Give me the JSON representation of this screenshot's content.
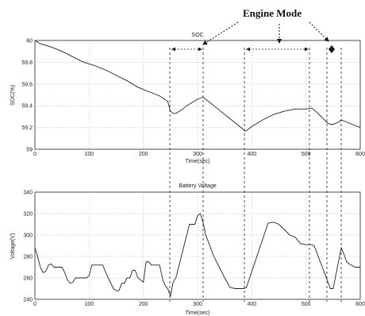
{
  "annotation": "Engine Mode",
  "chart_data": [
    {
      "type": "line",
      "title": "SOC",
      "xlabel": "Time(sec)",
      "ylabel": "SOC(%)",
      "xlim": [
        0,
        600
      ],
      "ylim": [
        59,
        60
      ],
      "xticks": [
        "0",
        "100",
        "200",
        "300",
        "400",
        "500",
        "600"
      ],
      "yticks": [
        "59",
        "59.2",
        "59.4",
        "59.6",
        "59.8",
        "60"
      ],
      "grid": true,
      "x": [
        0,
        10,
        30,
        50,
        70,
        90,
        110,
        130,
        150,
        170,
        190,
        210,
        230,
        245,
        250,
        255,
        260,
        270,
        280,
        290,
        300,
        310,
        320,
        330,
        340,
        350,
        360,
        370,
        380,
        387,
        390,
        400,
        420,
        440,
        460,
        480,
        500,
        510,
        520,
        530,
        540,
        545,
        550,
        560,
        565,
        570,
        580,
        590,
        600
      ],
      "values": [
        60.0,
        59.97,
        59.94,
        59.9,
        59.85,
        59.8,
        59.77,
        59.73,
        59.68,
        59.63,
        59.57,
        59.53,
        59.49,
        59.44,
        59.35,
        59.33,
        59.33,
        59.36,
        59.4,
        59.43,
        59.46,
        59.48,
        59.44,
        59.4,
        59.36,
        59.32,
        59.28,
        59.24,
        59.2,
        59.17,
        59.17,
        59.21,
        59.27,
        59.32,
        59.35,
        59.37,
        59.37,
        59.38,
        59.34,
        59.29,
        59.24,
        59.23,
        59.23,
        59.25,
        59.27,
        59.26,
        59.24,
        59.22,
        59.2
      ]
    },
    {
      "type": "line",
      "title": "Battery Voltage",
      "xlabel": "Time(sec)",
      "ylabel": "Voltage(V)",
      "xlim": [
        0,
        600
      ],
      "ylim": [
        240,
        340
      ],
      "xticks": [
        "0",
        "100",
        "200",
        "300",
        "400",
        "500",
        "600"
      ],
      "yticks": [
        "240",
        "260",
        "280",
        "300",
        "320",
        "340"
      ],
      "grid": true,
      "x": [
        0,
        5,
        10,
        15,
        20,
        25,
        30,
        35,
        40,
        45,
        50,
        55,
        60,
        65,
        70,
        75,
        80,
        85,
        90,
        95,
        100,
        105,
        110,
        115,
        120,
        125,
        130,
        135,
        140,
        145,
        150,
        155,
        160,
        165,
        170,
        175,
        180,
        185,
        190,
        195,
        200,
        205,
        210,
        215,
        220,
        225,
        230,
        235,
        240,
        245,
        250,
        255,
        260,
        265,
        270,
        275,
        280,
        285,
        290,
        295,
        300,
        305,
        310,
        315,
        330,
        350,
        360,
        370,
        380,
        385,
        390,
        430,
        440,
        450,
        460,
        470,
        480,
        490,
        500,
        510,
        515,
        530,
        545,
        550,
        565,
        570,
        575,
        580,
        590,
        600
      ],
      "values": [
        288,
        280,
        270,
        265,
        266,
        272,
        273,
        270,
        270,
        270,
        270,
        265,
        258,
        255,
        256,
        260,
        260,
        260,
        260,
        260,
        262,
        272,
        272,
        272,
        272,
        272,
        266,
        260,
        255,
        250,
        248,
        248,
        255,
        255,
        260,
        260,
        267,
        267,
        260,
        258,
        256,
        275,
        275,
        272,
        272,
        272,
        272,
        260,
        253,
        250,
        243,
        256,
        260,
        270,
        280,
        290,
        300,
        310,
        310,
        310,
        318,
        320,
        312,
        300,
        280,
        260,
        251,
        250,
        250,
        250,
        251,
        311,
        312,
        310,
        305,
        300,
        298,
        292,
        291,
        291,
        290,
        270,
        250,
        250,
        288,
        282,
        275,
        273,
        270,
        270
      ]
    }
  ]
}
